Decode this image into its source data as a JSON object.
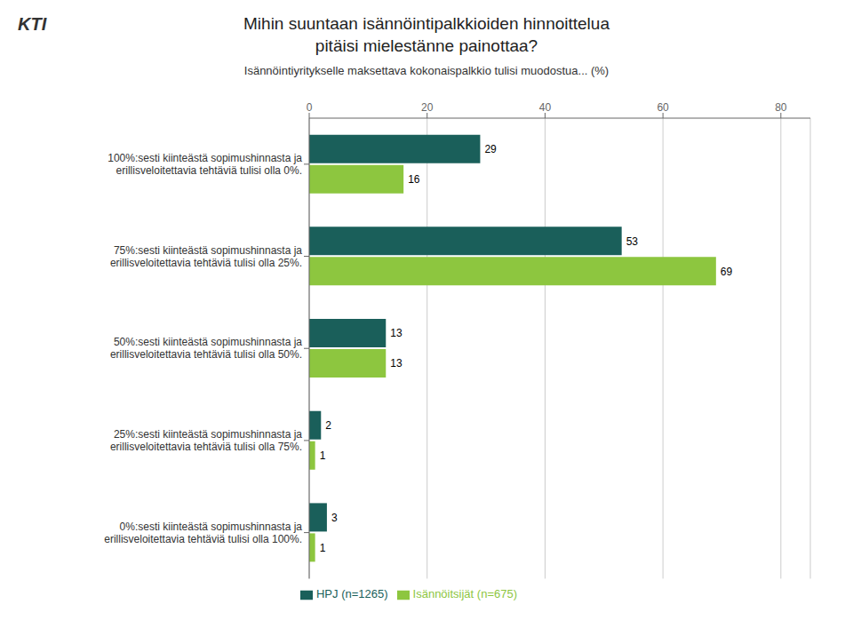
{
  "chart_data": {
    "type": "bar",
    "orientation": "horizontal",
    "title": "Mihin suuntaan isännöintipalkkioiden hinnoittelua\npitäisi mielestänne painottaa?",
    "subtitle": "Isännöintiyritykselle maksettava kokonaispalkkio tulisi muodostua... (%)",
    "categories": [
      "100%:sesti kiinteästä sopimushinnasta ja\nerillisveloitettavia tehtäviä tulisi olla 0%.",
      "75%:sesti kiinteästä sopimushinnasta ja\nerillisveloitettavia tehtäviä tulisi olla 25%.",
      "50%:sesti kiinteästä sopimushinnasta ja\nerillisveloitettavia tehtäviä tulisi olla 50%.",
      "25%:sesti kiinteästä sopimushinnasta ja\nerillisveloitettavia tehtäviä tulisi olla 75%.",
      "0%:sesti kiinteästä sopimushinnasta ja\nerillisveloitettavia tehtäviä tulisi olla 100%."
    ],
    "series": [
      {
        "name": "HPJ (n=1265)",
        "color": "#1a5f5a",
        "values": [
          29,
          53,
          13,
          2,
          3
        ]
      },
      {
        "name": "Isännöitsijät (n=675)",
        "color": "#8dc63f",
        "values": [
          16,
          69,
          13,
          1,
          1
        ]
      }
    ],
    "xlim": [
      0,
      85
    ],
    "xticks": [
      0,
      20,
      40,
      60,
      80
    ],
    "grid": true,
    "data_labels": true,
    "legend": "bottom",
    "annotations": [
      "KTI"
    ]
  }
}
